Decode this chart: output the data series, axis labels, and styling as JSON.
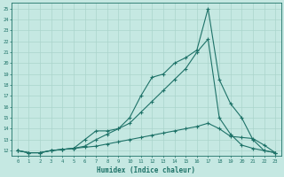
{
  "xlabel": "Humidex (Indice chaleur)",
  "bg_color": "#c5e8e2",
  "line_color": "#1e7268",
  "grid_color": "#aad4cc",
  "xlim": [
    -0.5,
    23.5
  ],
  "ylim": [
    11.5,
    25.5
  ],
  "xticks": [
    0,
    1,
    2,
    3,
    4,
    5,
    6,
    7,
    8,
    9,
    10,
    11,
    12,
    13,
    14,
    15,
    16,
    17,
    18,
    19,
    20,
    21,
    22,
    23
  ],
  "yticks": [
    12,
    13,
    14,
    15,
    16,
    17,
    18,
    19,
    20,
    21,
    22,
    23,
    24,
    25
  ],
  "curve1": [
    12,
    11.8,
    11.8,
    12,
    12.1,
    12.2,
    13.0,
    13.8,
    13.8,
    14.0,
    15.0,
    17.0,
    18.7,
    19.0,
    20.0,
    20.5,
    21.2,
    25.0,
    18.5,
    16.3,
    15.0,
    13.0,
    12.0,
    11.8
  ],
  "curve2": [
    12,
    11.8,
    11.8,
    12,
    12.1,
    12.2,
    12.4,
    13.0,
    13.5,
    14.0,
    14.5,
    15.5,
    16.5,
    17.5,
    18.5,
    19.5,
    21.0,
    22.2,
    15.0,
    13.5,
    12.5,
    12.2,
    12.0,
    11.8
  ],
  "curve3": [
    12,
    11.8,
    11.8,
    12,
    12.1,
    12.2,
    12.3,
    12.4,
    12.6,
    12.8,
    13.0,
    13.2,
    13.4,
    13.6,
    13.8,
    14.0,
    14.2,
    14.5,
    14.0,
    13.3,
    13.2,
    13.1,
    12.5,
    11.8
  ]
}
